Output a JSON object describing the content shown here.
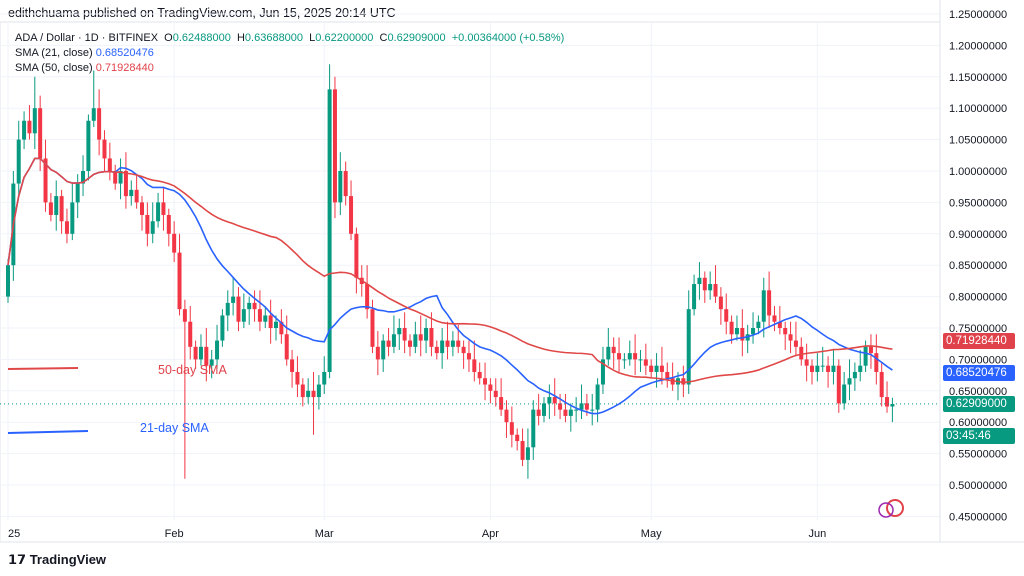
{
  "publisher": "edithchuama published on TradingView.com, Jun 15, 2025 20:14 UTC",
  "legend": {
    "symbol": "ADA / Dollar · 1D · BITFINEX",
    "o_label": "O",
    "o": "0.62488000",
    "h_label": "H",
    "h": "0.63688000",
    "l_label": "L",
    "l": "0.62200000",
    "c_label": "C",
    "c": "0.62909000",
    "change": "+0.00364000 (+0.58%)",
    "sma21_label": "SMA (21, close)",
    "sma21": "0.68520476",
    "sma50_label": "SMA (50, close)",
    "sma50": "0.71928440"
  },
  "tags": {
    "sma50": "0.71928440",
    "sma21": "0.68520476",
    "price": "0.62909000",
    "countdown": "03:45:46"
  },
  "annotations": {
    "sma50": "50-day SMA",
    "sma21": "21-day SMA"
  },
  "logo": "TradingView",
  "colors": {
    "up": "#089981",
    "down": "#f23645",
    "sma21": "#2962ff",
    "sma50": "#e04848"
  },
  "chart_data": {
    "type": "candlestick",
    "title": "ADA / Dollar · 1D · BITFINEX",
    "ylim": [
      0.45,
      1.25
    ],
    "yticks": [
      "1.25000000",
      "1.20000000",
      "1.15000000",
      "1.10000000",
      "1.05000000",
      "1.00000000",
      "0.95000000",
      "0.90000000",
      "0.85000000",
      "0.80000000",
      "0.75000000",
      "0.70000000",
      "0.65000000",
      "0.60000000",
      "0.55000000",
      "0.50000000",
      "0.45000000"
    ],
    "xticks": [
      {
        "label": "25",
        "day": 0
      },
      {
        "label": "Feb",
        "day": 31
      },
      {
        "label": "Mar",
        "day": 59
      },
      {
        "label": "Apr",
        "day": 90
      },
      {
        "label": "May",
        "day": 120
      },
      {
        "label": "Jun",
        "day": 151
      }
    ],
    "start": "2025-01-01",
    "closes": [
      0.85,
      0.98,
      1.05,
      1.08,
      1.06,
      1.1,
      1.02,
      0.95,
      0.93,
      0.96,
      0.92,
      0.9,
      0.95,
      0.98,
      1.0,
      1.08,
      1.1,
      1.05,
      1.02,
      1.0,
      0.98,
      1.0,
      0.96,
      0.97,
      0.95,
      0.93,
      0.9,
      0.92,
      0.95,
      0.93,
      0.9,
      0.87,
      0.78,
      0.76,
      0.72,
      0.7,
      0.72,
      0.69,
      0.7,
      0.73,
      0.77,
      0.79,
      0.8,
      0.76,
      0.78,
      0.79,
      0.78,
      0.76,
      0.77,
      0.75,
      0.76,
      0.74,
      0.7,
      0.68,
      0.66,
      0.64,
      0.65,
      0.64,
      0.66,
      0.68,
      1.13,
      0.95,
      1.0,
      0.96,
      0.9,
      0.83,
      0.82,
      0.78,
      0.72,
      0.7,
      0.73,
      0.72,
      0.74,
      0.75,
      0.73,
      0.72,
      0.74,
      0.73,
      0.75,
      0.72,
      0.71,
      0.73,
      0.72,
      0.73,
      0.72,
      0.71,
      0.7,
      0.68,
      0.67,
      0.66,
      0.65,
      0.64,
      0.62,
      0.6,
      0.58,
      0.57,
      0.54,
      0.56,
      0.62,
      0.61,
      0.63,
      0.64,
      0.63,
      0.62,
      0.61,
      0.62,
      0.62,
      0.63,
      0.62,
      0.62,
      0.66,
      0.7,
      0.72,
      0.71,
      0.7,
      0.7,
      0.71,
      0.7,
      0.7,
      0.69,
      0.68,
      0.69,
      0.68,
      0.67,
      0.66,
      0.67,
      0.66,
      0.78,
      0.82,
      0.83,
      0.81,
      0.82,
      0.8,
      0.78,
      0.76,
      0.74,
      0.75,
      0.73,
      0.74,
      0.75,
      0.76,
      0.81,
      0.77,
      0.76,
      0.75,
      0.74,
      0.73,
      0.72,
      0.7,
      0.69,
      0.68,
      0.69,
      0.69,
      0.68,
      0.69,
      0.63,
      0.66,
      0.67,
      0.68,
      0.69,
      0.72,
      0.71,
      0.68,
      0.64,
      0.625,
      0.629
    ],
    "wicks": [
      {
        "index": 33,
        "low": 0.51
      },
      {
        "index": 60,
        "high": 1.17
      },
      {
        "index": 97,
        "low": 0.51
      },
      {
        "index": 57,
        "low": 0.58
      },
      {
        "index": 5,
        "high": 1.15
      },
      {
        "index": 16,
        "high": 1.16
      }
    ],
    "series": [
      {
        "name": "SMA (21, close)",
        "last": 0.68520476
      },
      {
        "name": "SMA (50, close)",
        "last": 0.7192844
      }
    ],
    "last_price": 0.62909
  }
}
